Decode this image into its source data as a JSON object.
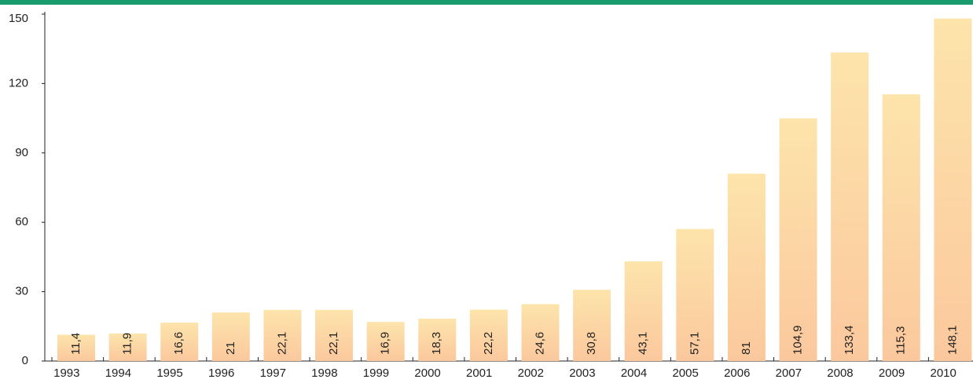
{
  "chart_data": {
    "type": "bar",
    "categories": [
      "1993",
      "1994",
      "1995",
      "1996",
      "1997",
      "1998",
      "1999",
      "2000",
      "2001",
      "2002",
      "2003",
      "2004",
      "2005",
      "2006",
      "2007",
      "2008",
      "2009",
      "2010"
    ],
    "values": [
      11.4,
      11.9,
      16.6,
      21,
      22.1,
      22.1,
      16.9,
      18.3,
      22.2,
      24.6,
      30.8,
      43.1,
      57.1,
      81,
      104.9,
      133.4,
      115.3,
      148.1
    ],
    "value_labels": [
      "11,4",
      "11,9",
      "16,6",
      "21",
      "22,1",
      "22,1",
      "16,9",
      "18,3",
      "22,2",
      "24,6",
      "30,8",
      "43,1",
      "57,1",
      "81",
      "104,9",
      "133,4",
      "115,3",
      "148,1"
    ],
    "color": "#fde4ab",
    "ylim": [
      0,
      150
    ],
    "yticks": [
      0,
      30,
      60,
      90,
      120,
      150
    ],
    "grid": false
  }
}
